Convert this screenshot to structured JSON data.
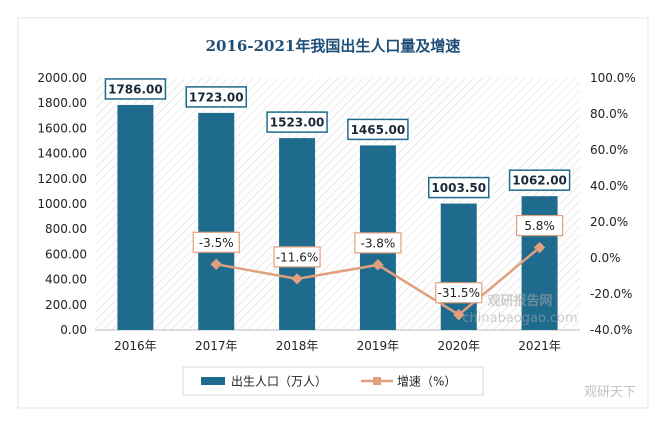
{
  "chart_data": {
    "type": "bar",
    "title": "2016-2021年我国出生人口量及增速",
    "categories": [
      "2016年",
      "2017年",
      "2018年",
      "2019年",
      "2020年",
      "2021年"
    ],
    "series": [
      {
        "name": "出生人口（万人）",
        "kind": "bar",
        "axis": "left",
        "values": [
          1786.0,
          1723.0,
          1523.0,
          1465.0,
          1003.5,
          1062.0
        ],
        "labels": [
          "1786.00",
          "1723.00",
          "1523.00",
          "1465.00",
          "1003.50",
          "1062.00"
        ],
        "color": "#1f6b8e"
      },
      {
        "name": "增速（%）",
        "kind": "line",
        "axis": "right",
        "values": [
          null,
          -3.5,
          -11.6,
          -3.8,
          -31.5,
          5.8
        ],
        "labels": [
          "",
          "-3.5%",
          "-11.6%",
          "-3.8%",
          "-31.5%",
          "5.8%"
        ],
        "color": "#e0a07e"
      }
    ],
    "y_left": {
      "ylim": [
        0,
        2000
      ],
      "ticks": [
        "0.00",
        "200.00",
        "400.00",
        "600.00",
        "800.00",
        "1000.00",
        "1200.00",
        "1400.00",
        "1600.00",
        "1800.00",
        "2000.00"
      ]
    },
    "y_right": {
      "ylim": [
        -40,
        100
      ],
      "ticks": [
        "-40.0%",
        "-20.0%",
        "0.0%",
        "20.0%",
        "40.0%",
        "60.0%",
        "80.0%",
        "100.0%"
      ]
    },
    "legend": "bottom",
    "watermarks": [
      "观研报告网",
      "chinabaogao.com",
      "观研天下"
    ]
  }
}
